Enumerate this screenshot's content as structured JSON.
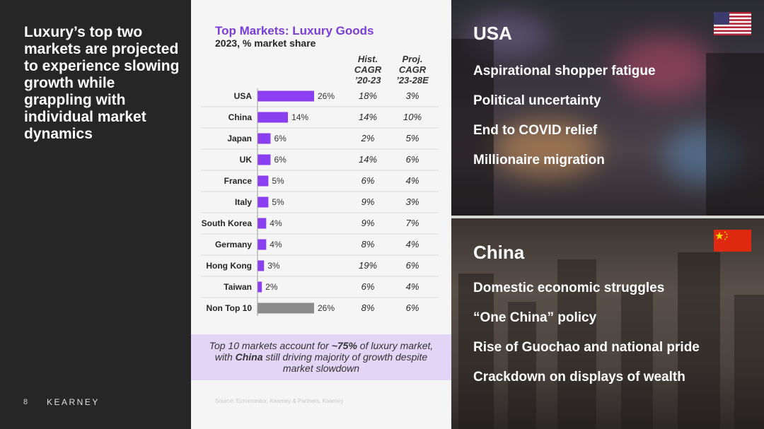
{
  "left": {
    "headline": "Luxury’s top two markets are projected to experience slowing growth while grappling with individual market dynamics",
    "page_number": "8",
    "brand": "KEARNEY"
  },
  "chart_data": {
    "type": "bar",
    "orientation": "horizontal",
    "title": "Top Markets: Luxury Goods",
    "subtitle": "2023, % market share",
    "categories": [
      "USA",
      "China",
      "Japan",
      "UK",
      "France",
      "Italy",
      "South Korea",
      "Germany",
      "Hong Kong",
      "Taiwan",
      "Non Top 10"
    ],
    "values": [
      26,
      14,
      6,
      6,
      5,
      5,
      4,
      4,
      3,
      2,
      26
    ],
    "value_labels": [
      "26%",
      "14%",
      "6%",
      "6%",
      "5%",
      "5%",
      "4%",
      "4%",
      "3%",
      "2%",
      "26%"
    ],
    "colors": [
      "#8a3ff0",
      "#8a3ff0",
      "#8a3ff0",
      "#8a3ff0",
      "#8a3ff0",
      "#8a3ff0",
      "#8a3ff0",
      "#8a3ff0",
      "#8a3ff0",
      "#8a3ff0",
      "#8c8c8c"
    ],
    "table_columns": [
      {
        "header": "Hist.\nCAGR\n’20-23",
        "values": [
          "18%",
          "14%",
          "2%",
          "14%",
          "6%",
          "9%",
          "9%",
          "8%",
          "19%",
          "6%",
          "8%"
        ]
      },
      {
        "header": "Proj.\nCAGR\n’23-28E",
        "values": [
          "3%",
          "10%",
          "5%",
          "6%",
          "4%",
          "3%",
          "7%",
          "4%",
          "6%",
          "4%",
          "6%"
        ]
      }
    ],
    "xlim": [
      0,
      30
    ]
  },
  "callout": {
    "text_1": "Top 10 markets account for ",
    "text_2": "~75%",
    "text_3": " of luxury market, with ",
    "text_4": "China",
    "text_5": " still driving majority of growth despite market slowdown"
  },
  "source": "Source: Euromonitor, Kearney & Partners, Kearney",
  "usa": {
    "title": "USA",
    "flag": "us-flag",
    "items": [
      "Aspirational shopper fatigue",
      "Political uncertainty",
      "End to COVID relief",
      "Millionaire migration"
    ]
  },
  "china": {
    "title": "China",
    "flag": "china-flag",
    "items": [
      "Domestic economic struggles",
      "“One China” policy",
      "Rise of Guochao and national pride",
      "Crackdown on displays of wealth"
    ]
  }
}
